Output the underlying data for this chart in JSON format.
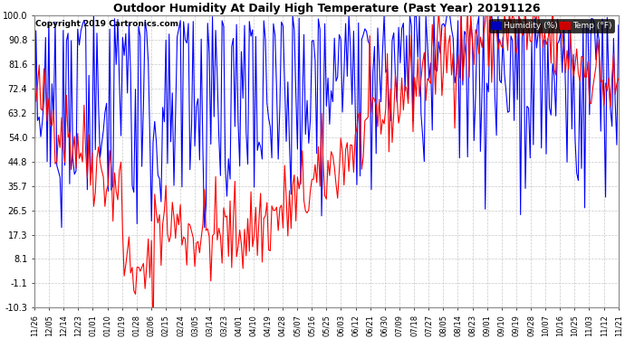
{
  "title": "Outdoor Humidity At Daily High Temperature (Past Year) 20191126",
  "copyright": "Copyright 2019 Cartronics.com",
  "legend_humidity": "Humidity (%)",
  "legend_temp": "Temp (°F)",
  "humidity_color": "#0000ff",
  "temp_color": "#ff0000",
  "bg_color": "#ffffff",
  "plot_bg_color": "#ffffff",
  "grid_color": "#bbbbbb",
  "yticks": [
    100.0,
    90.8,
    81.6,
    72.4,
    63.2,
    54.0,
    44.8,
    35.7,
    26.5,
    17.3,
    8.1,
    -1.1,
    -10.3
  ],
  "xtick_labels": [
    "11/26",
    "12/05",
    "12/14",
    "12/23",
    "01/01",
    "01/10",
    "01/19",
    "01/28",
    "02/06",
    "02/15",
    "02/24",
    "03/05",
    "03/14",
    "03/23",
    "04/01",
    "04/10",
    "04/19",
    "04/28",
    "05/07",
    "05/16",
    "05/25",
    "06/03",
    "06/12",
    "06/21",
    "06/30",
    "07/09",
    "07/18",
    "07/27",
    "08/05",
    "08/14",
    "08/23",
    "09/01",
    "09/10",
    "09/19",
    "09/28",
    "10/07",
    "10/16",
    "10/25",
    "11/03",
    "11/12",
    "11/21"
  ],
  "ylim": [
    -10.3,
    100.0
  ],
  "figsize": [
    6.9,
    3.75
  ],
  "dpi": 100
}
